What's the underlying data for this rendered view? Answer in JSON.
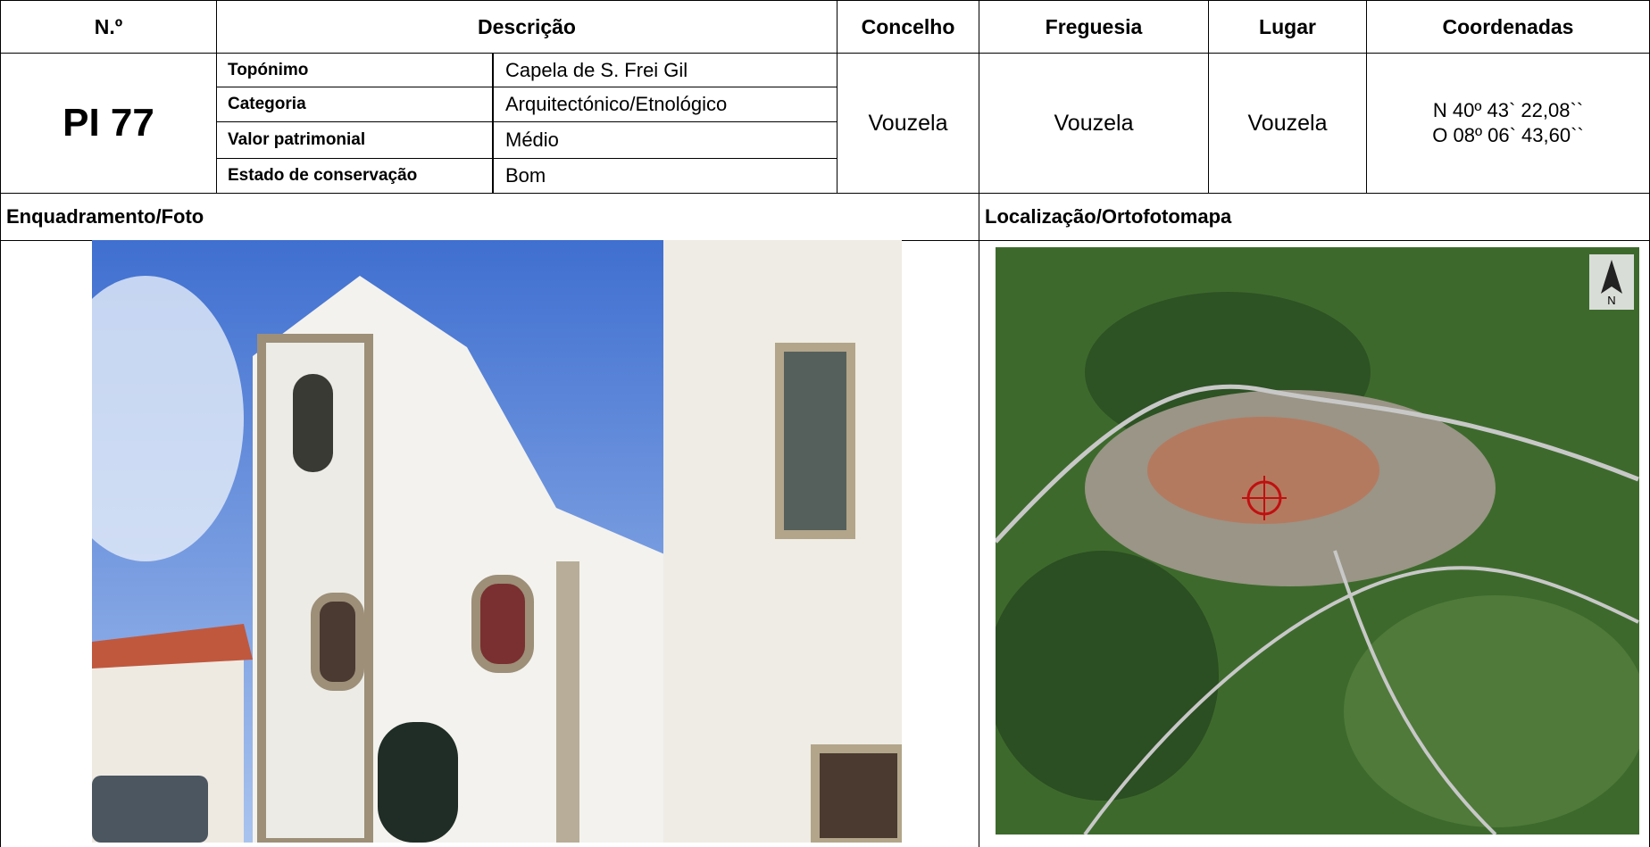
{
  "header": {
    "number": "N.º",
    "description": "Descrição",
    "municipality": "Concelho",
    "parish": "Freguesia",
    "place": "Lugar",
    "coordinates": "Coordenadas"
  },
  "record": {
    "id": "PI 77",
    "fields": [
      {
        "label": "Topónimo",
        "value": "Capela de S. Frei Gil"
      },
      {
        "label": "Categoria",
        "value": "Arquitectónico/Etnológico"
      },
      {
        "label": "Valor patrimonial",
        "value": "Médio"
      },
      {
        "label": "Estado de conservação",
        "value": "Bom"
      }
    ],
    "municipality": "Vouzela",
    "parish": "Vouzela",
    "place": "Vouzela",
    "coordinates": [
      "N 40º 43` 22,08``",
      "O 08º 06` 43,60``"
    ]
  },
  "sections": {
    "photo": "Enquadramento/Foto",
    "map": "Localização/Ortofotomapa",
    "north": "N"
  }
}
